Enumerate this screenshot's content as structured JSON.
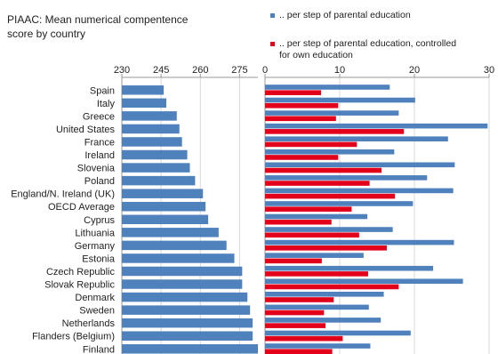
{
  "title": {
    "line1": "PIAAC:  Mean numerical compentence",
    "line2": "score by country"
  },
  "legend": {
    "blue_label": ".. per step of parental education",
    "red_label_line1": ".. per step of parental education, controlled",
    "red_label_line2": "for own education"
  },
  "colors": {
    "blue": "#4f81bd",
    "red": "#e3001b",
    "axis": "#999999",
    "grid": "#d9d9d9"
  },
  "chart_data": [
    {
      "type": "bar",
      "orientation": "horizontal",
      "categories": [
        "Spain",
        "Italy",
        "Greece",
        "United States",
        "France",
        "Ireland",
        "Slovenia",
        "Poland",
        "England/N. Ireland (UK)",
        "OECD Average",
        "Cyprus",
        "Lithuania",
        "Germany",
        "Estonia",
        "Czech Republic",
        "Slovak Republic",
        "Denmark",
        "Sweden",
        "Netherlands",
        "Flanders (Belgium)",
        "Finland"
      ],
      "values": [
        246,
        247,
        251,
        252,
        253,
        255,
        256,
        258,
        261,
        262,
        263,
        267,
        270,
        273,
        276,
        276,
        278,
        279,
        280,
        280,
        282
      ],
      "xlim": [
        230,
        282
      ],
      "xticks": [
        230,
        245,
        260,
        275
      ],
      "grid": true,
      "axis_position": "top"
    },
    {
      "type": "bar",
      "orientation": "horizontal",
      "categories": [
        "Spain",
        "Italy",
        "Greece",
        "United States",
        "France",
        "Ireland",
        "Slovenia",
        "Poland",
        "England/N. Ireland (UK)",
        "OECD Average",
        "Cyprus",
        "Lithuania",
        "Germany",
        "Estonia",
        "Czech Republic",
        "Slovak Republic",
        "Denmark",
        "Sweden",
        "Netherlands",
        "Flanders (Belgium)",
        "Finland"
      ],
      "series": [
        {
          "name": ".. per step of parental education",
          "values": [
            16.7,
            20.1,
            17.9,
            29.8,
            24.5,
            17.3,
            25.4,
            21.7,
            25.2,
            19.8,
            13.7,
            17.1,
            25.3,
            13.2,
            22.5,
            26.5,
            15.9,
            13.9,
            15.5,
            19.5,
            14.1
          ]
        },
        {
          "name": ".. per step of parental education, controlled for own education",
          "values": [
            7.5,
            9.8,
            9.5,
            18.6,
            12.3,
            9.8,
            15.6,
            14.0,
            17.4,
            11.6,
            8.9,
            12.6,
            16.3,
            7.6,
            13.8,
            17.9,
            9.2,
            7.9,
            8.1,
            10.4,
            9.0
          ]
        }
      ],
      "xlim": [
        0,
        30
      ],
      "xticks": [
        0,
        10,
        20,
        30
      ],
      "grid": true,
      "legend_position": "top-right"
    }
  ]
}
